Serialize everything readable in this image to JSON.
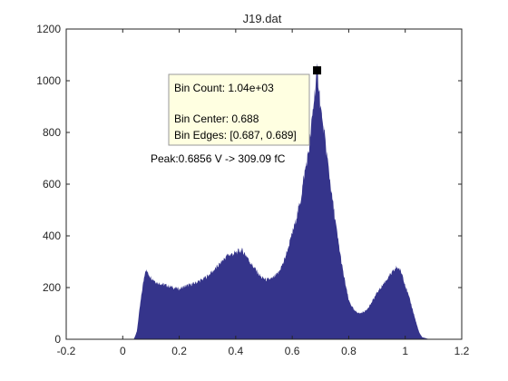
{
  "chart_data": {
    "type": "bar",
    "title": "J19.dat",
    "xlabel": "",
    "ylabel": "",
    "xlim": [
      -0.2,
      1.2
    ],
    "ylim": [
      0,
      1200
    ],
    "xticks": [
      "-0.2",
      "0",
      "0.2",
      "0.4",
      "0.6",
      "0.8",
      "1",
      "1.2"
    ],
    "yticks": [
      "0",
      "200",
      "400",
      "600",
      "800",
      "1000",
      "1200"
    ],
    "grid": false,
    "bar_color": "#35348b",
    "histogram_profile": {
      "x": [
        0.0,
        0.04,
        0.05,
        0.06,
        0.07,
        0.08,
        0.1,
        0.12,
        0.15,
        0.18,
        0.2,
        0.22,
        0.25,
        0.28,
        0.3,
        0.33,
        0.35,
        0.37,
        0.39,
        0.41,
        0.42,
        0.43,
        0.44,
        0.45,
        0.47,
        0.49,
        0.51,
        0.53,
        0.55,
        0.57,
        0.59,
        0.61,
        0.63,
        0.64,
        0.66,
        0.67,
        0.68,
        0.688,
        0.695,
        0.7,
        0.72,
        0.74,
        0.76,
        0.78,
        0.8,
        0.82,
        0.84,
        0.86,
        0.88,
        0.9,
        0.92,
        0.94,
        0.96,
        0.97,
        0.98,
        0.99,
        1.0,
        1.02,
        1.04,
        1.05,
        1.06,
        1.08,
        1.1
      ],
      "y": [
        0,
        2,
        30,
        120,
        200,
        270,
        240,
        220,
        210,
        200,
        195,
        205,
        215,
        230,
        245,
        275,
        300,
        325,
        330,
        340,
        345,
        335,
        320,
        300,
        270,
        240,
        230,
        235,
        255,
        300,
        370,
        450,
        540,
        620,
        740,
        850,
        960,
        1040,
        980,
        900,
        740,
        560,
        400,
        260,
        150,
        110,
        100,
        110,
        140,
        180,
        210,
        240,
        265,
        280,
        270,
        250,
        210,
        140,
        60,
        25,
        8,
        2,
        0
      ]
    },
    "datatip": {
      "lines": [
        "Bin Count: 1.04e+03",
        "",
        "Bin Center: 0.688",
        "Bin Edges: [0.687, 0.689]"
      ],
      "x": 0.688,
      "y": 1040
    },
    "annotation": {
      "text": "Peak:0.6856 V -> 309.09 fC"
    }
  }
}
